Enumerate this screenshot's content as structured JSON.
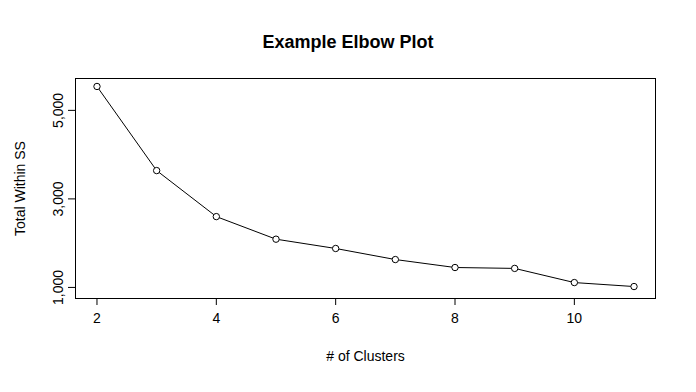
{
  "chart_data": {
    "type": "line",
    "title": "Example Elbow Plot",
    "x_label": "# of Clusters",
    "y_label": "Total Within SS",
    "x": [
      2,
      3,
      4,
      5,
      6,
      7,
      8,
      9,
      10,
      11
    ],
    "values": [
      5540,
      3640,
      2600,
      2090,
      1880,
      1630,
      1450,
      1430,
      1110,
      1020
    ],
    "color": "#000000",
    "marker": "circle",
    "line_style": "solid",
    "xlim": [
      1.64,
      11.36
    ],
    "xticks": [
      2,
      4,
      6,
      8,
      10
    ],
    "ylim": [
      750,
      5720
    ],
    "yticks": [
      1000,
      3000,
      5000
    ],
    "grid": false
  }
}
